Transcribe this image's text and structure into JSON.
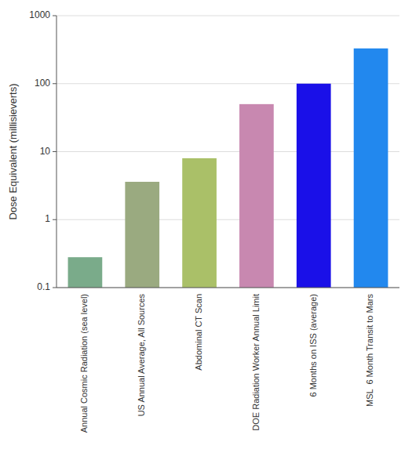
{
  "chart_data": {
    "type": "bar",
    "categories": [
      "Annual Cosmic Radiation (sea level)",
      "US Annual Average, All Sources",
      "Abdominal CT Scan",
      "DOE Radiation Worker Annual Limit",
      "6 Months on ISS (average)",
      "MSL  6 Month Transit to Mars"
    ],
    "values": [
      0.28,
      3.6,
      8.0,
      50.0,
      100.0,
      330.0
    ],
    "colors": [
      "#7aab8a",
      "#9aaa80",
      "#aac068",
      "#c888b0",
      "#1a10e8",
      "#2288ee"
    ],
    "ylabel": "Dose Equivalent (millisieverts)",
    "ylim": [
      0.1,
      1000
    ],
    "yticks": [
      0.1,
      1,
      10,
      100,
      1000
    ],
    "log": "y",
    "grid": true
  }
}
